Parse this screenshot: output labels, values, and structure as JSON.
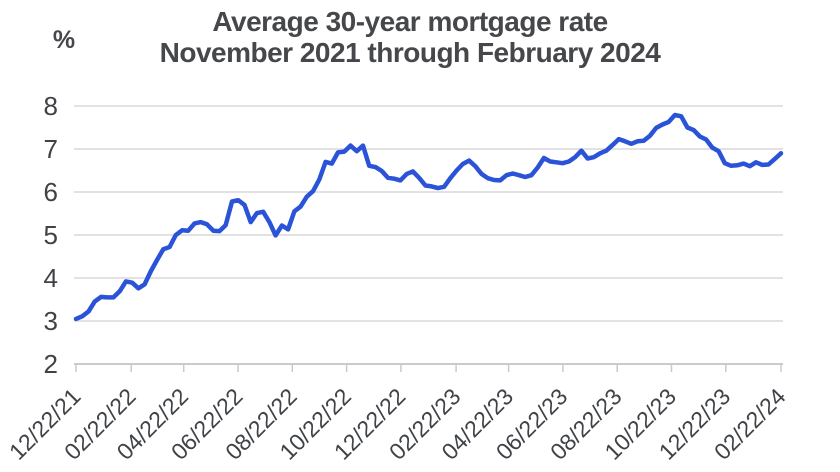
{
  "header": {
    "title_line1": "Average 30-year mortgage rate",
    "title_line2": "November 2021 through February 2024",
    "y_unit_label": "%"
  },
  "chart_data": {
    "type": "line",
    "title": "Average 30-year mortgage rate November 2021 through February 2024",
    "ylabel": "%",
    "xlabel": "",
    "ylim": [
      2,
      8
    ],
    "yticks": [
      8,
      7,
      6,
      5,
      4,
      3,
      2
    ],
    "grid": "horizontal",
    "legend": "none",
    "x_tick_labels": [
      "12/22/21",
      "02/22/22",
      "04/22/22",
      "06/22/22",
      "08/22/22",
      "10/22/22",
      "12/22/22",
      "02/22/23",
      "04/22/23",
      "06/22/23",
      "08/22/23",
      "10/22/23",
      "12/22/23",
      "02/22/24"
    ],
    "series": [
      {
        "name": "Average 30-year mortgage rate",
        "frequency": "weekly",
        "start": "12/22/21",
        "end": "02/22/24",
        "values": [
          3.05,
          3.11,
          3.22,
          3.45,
          3.56,
          3.55,
          3.55,
          3.69,
          3.92,
          3.89,
          3.76,
          3.85,
          4.16,
          4.42,
          4.67,
          4.72,
          5.0,
          5.11,
          5.1,
          5.27,
          5.3,
          5.25,
          5.1,
          5.09,
          5.23,
          5.78,
          5.81,
          5.7,
          5.3,
          5.51,
          5.54,
          5.3,
          4.99,
          5.22,
          5.13,
          5.55,
          5.66,
          5.89,
          6.02,
          6.29,
          6.7,
          6.66,
          6.92,
          6.94,
          7.08,
          6.95,
          7.08,
          6.61,
          6.58,
          6.49,
          6.33,
          6.31,
          6.27,
          6.42,
          6.48,
          6.33,
          6.15,
          6.13,
          6.09,
          6.12,
          6.32,
          6.5,
          6.65,
          6.73,
          6.6,
          6.42,
          6.32,
          6.28,
          6.27,
          6.39,
          6.43,
          6.39,
          6.35,
          6.39,
          6.57,
          6.79,
          6.71,
          6.69,
          6.67,
          6.71,
          6.81,
          6.96,
          6.78,
          6.81,
          6.9,
          6.96,
          7.09,
          7.23,
          7.18,
          7.12,
          7.18,
          7.19,
          7.31,
          7.49,
          7.57,
          7.63,
          7.79,
          7.76,
          7.5,
          7.44,
          7.29,
          7.22,
          7.03,
          6.95,
          6.67,
          6.61,
          6.62,
          6.66,
          6.6,
          6.69,
          6.63,
          6.64,
          6.77,
          6.9
        ]
      }
    ],
    "colors": {
      "line": "#2b53d7",
      "grid": "#d9d9da",
      "axis": "#c9cacc",
      "text": "#46474b",
      "tick_text": "#3f4246"
    }
  }
}
